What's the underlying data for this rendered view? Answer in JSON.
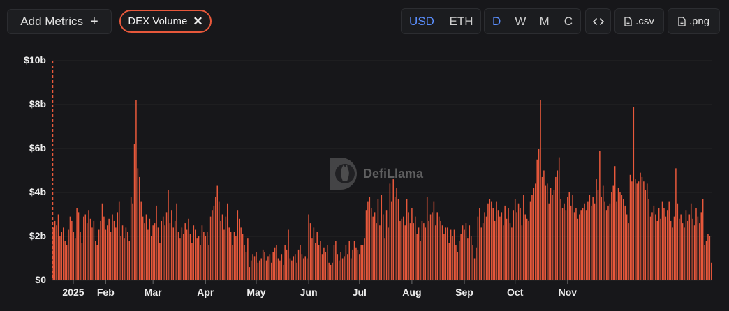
{
  "toolbar": {
    "add_metrics": "Add Metrics",
    "metric_chip": "DEX Volume",
    "currency": [
      "USD",
      "ETH"
    ],
    "currency_active": "USD",
    "periods": [
      "D",
      "W",
      "M",
      "C"
    ],
    "period_active": "D",
    "csv_label": ".csv",
    "png_label": ".png"
  },
  "watermark": "DefiLlama",
  "colors": {
    "bar": "#e8583b",
    "accent": "#5b8fff",
    "background": "#17171a"
  },
  "chart_data": {
    "type": "bar",
    "series": [
      {
        "name": "DEX Volume"
      }
    ],
    "ylim": [
      0,
      10
    ],
    "y_ticks": [
      {
        "value": 0,
        "label": "$0"
      },
      {
        "value": 2,
        "label": "$2b"
      },
      {
        "value": 4,
        "label": "$4b"
      },
      {
        "value": 6,
        "label": "$6b"
      },
      {
        "value": 8,
        "label": "$8b"
      },
      {
        "value": 10,
        "label": "$10b"
      }
    ],
    "x_ticks": [
      {
        "day": 0,
        "label": "2025"
      },
      {
        "day": 31,
        "label": "Feb"
      },
      {
        "day": 59,
        "label": "Mar"
      },
      {
        "day": 90,
        "label": "Apr"
      },
      {
        "day": 120,
        "label": "May"
      },
      {
        "day": 151,
        "label": "Jun"
      },
      {
        "day": 181,
        "label": "Jul"
      },
      {
        "day": 212,
        "label": "Aug"
      },
      {
        "day": 243,
        "label": "Sep"
      },
      {
        "day": 273,
        "label": "Oct"
      },
      {
        "day": 304,
        "label": "Nov"
      }
    ],
    "grid": true,
    "legend": "none",
    "values_billion_usd": [
      2.4,
      2.7,
      2.5,
      3.0,
      2.0,
      2.2,
      2.4,
      1.8,
      1.6,
      2.3,
      2.9,
      2.7,
      2.2,
      1.9,
      3.3,
      3.1,
      2.2,
      1.7,
      2.9,
      3.0,
      2.6,
      3.2,
      2.8,
      2.4,
      2.7,
      1.8,
      1.6,
      2.3,
      2.7,
      3.5,
      2.9,
      2.3,
      2.5,
      2.8,
      2.2,
      3.0,
      2.7,
      2.4,
      3.1,
      3.6,
      2.0,
      2.5,
      1.9,
      2.4,
      2.2,
      1.8,
      3.8,
      3.5,
      6.2,
      8.2,
      5.1,
      4.7,
      3.6,
      2.9,
      2.6,
      3.0,
      2.3,
      2.8,
      2.0,
      2.5,
      2.6,
      3.4,
      2.4,
      1.7,
      2.7,
      2.9,
      2.5,
      3.1,
      4.1,
      2.6,
      3.2,
      2.4,
      2.7,
      3.5,
      2.2,
      1.9,
      2.4,
      2.1,
      2.6,
      2.3,
      2.8,
      2.1,
      1.7,
      2.5,
      2.3,
      1.9,
      2.0,
      1.6,
      2.5,
      2.2,
      2.0,
      2.2,
      1.6,
      2.9,
      3.2,
      3.4,
      3.8,
      4.3,
      3.6,
      2.7,
      3.0,
      2.3,
      2.9,
      3.5,
      2.4,
      2.2,
      1.6,
      2.2,
      2.0,
      3.2,
      2.8,
      2.4,
      2.1,
      1.6,
      1.3,
      1.9,
      0.6,
      0.9,
      1.2,
      1.1,
      1.3,
      0.8,
      0.9,
      1.0,
      1.4,
      1.3,
      0.9,
      1.1,
      1.2,
      0.8,
      1.3,
      1.5,
      1.6,
      1.0,
      0.9,
      1.2,
      0.7,
      1.6,
      1.4,
      2.3,
      1.0,
      0.9,
      1.1,
      1.2,
      0.8,
      1.4,
      1.6,
      1.2,
      1.0,
      1.1,
      1.0,
      3.0,
      2.6,
      1.9,
      2.4,
      1.7,
      2.2,
      1.6,
      1.8,
      1.2,
      1.5,
      1.3,
      1.6,
      0.8,
      0.7,
      0.8,
      1.6,
      1.8,
      1.2,
      0.9,
      1.3,
      1.0,
      1.1,
      1.6,
      1.2,
      1.8,
      1.0,
      1.4,
      1.8,
      1.5,
      1.4,
      1.2,
      1.6,
      1.6,
      1.9,
      3.2,
      3.6,
      3.8,
      3.3,
      2.9,
      3.1,
      2.6,
      3.7,
      2.5,
      3.9,
      3.0,
      1.9,
      3.2,
      2.4,
      4.4,
      3.6,
      4.6,
      3.8,
      4.2,
      3.7,
      2.7,
      2.8,
      2.9,
      2.5,
      3.7,
      3.1,
      2.6,
      3.3,
      2.6,
      2.9,
      2.1,
      2.4,
      1.8,
      2.7,
      2.6,
      2.4,
      3.8,
      2.7,
      3.0,
      3.1,
      3.6,
      2.5,
      3.1,
      2.9,
      2.7,
      2.5,
      2.1,
      2.4,
      2.4,
      1.7,
      2.3,
      2.0,
      2.3,
      1.6,
      1.3,
      1.8,
      2.1,
      2.5,
      2.3,
      2.6,
      1.9,
      2.5,
      2.0,
      1.6,
      1.0,
      1.5,
      2.9,
      3.3,
      2.4,
      2.6,
      3.1,
      2.9,
      3.5,
      3.7,
      3.6,
      3.3,
      2.7,
      3.6,
      3.2,
      2.9,
      3.1,
      2.5,
      3.4,
      2.8,
      3.3,
      2.6,
      2.4,
      3.2,
      3.7,
      3.1,
      3.5,
      3.3,
      2.5,
      3.9,
      3.0,
      2.8,
      2.7,
      3.6,
      3.9,
      4.2,
      4.4,
      5.5,
      6.0,
      8.2,
      4.7,
      5.0,
      4.3,
      4.4,
      3.5,
      4.2,
      3.9,
      4.1,
      4.7,
      5.0,
      5.6,
      3.7,
      3.3,
      3.5,
      3.2,
      3.8,
      4.0,
      3.4,
      3.9,
      3.1,
      3.3,
      2.8,
      3.0,
      3.2,
      3.3,
      3.5,
      3.2,
      3.6,
      3.9,
      3.4,
      3.8,
      3.5,
      4.6,
      4.1,
      5.9,
      3.8,
      4.3,
      3.6,
      3.2,
      3.4,
      3.5,
      4.0,
      4.3,
      5.2,
      3.6,
      4.2,
      4.0,
      3.9,
      3.7,
      3.4,
      3.0,
      2.6,
      4.8,
      4.5,
      7.9,
      4.6,
      4.4,
      4.5,
      4.9,
      4.7,
      4.5,
      4.1,
      4.4,
      3.7,
      2.9,
      3.1,
      3.4,
      3.0,
      2.7,
      3.3,
      2.8,
      3.6,
      3.3,
      2.9,
      3.2,
      3.6,
      2.7,
      2.4,
      2.9,
      5.1,
      3.5,
      2.8,
      3.0,
      2.6,
      2.4,
      3.2,
      2.7,
      3.0,
      3.5,
      2.8,
      2.5,
      3.3,
      2.9,
      2.6,
      3.1,
      3.7,
      1.6,
      1.8,
      2.1,
      2.0,
      0.8
    ]
  }
}
